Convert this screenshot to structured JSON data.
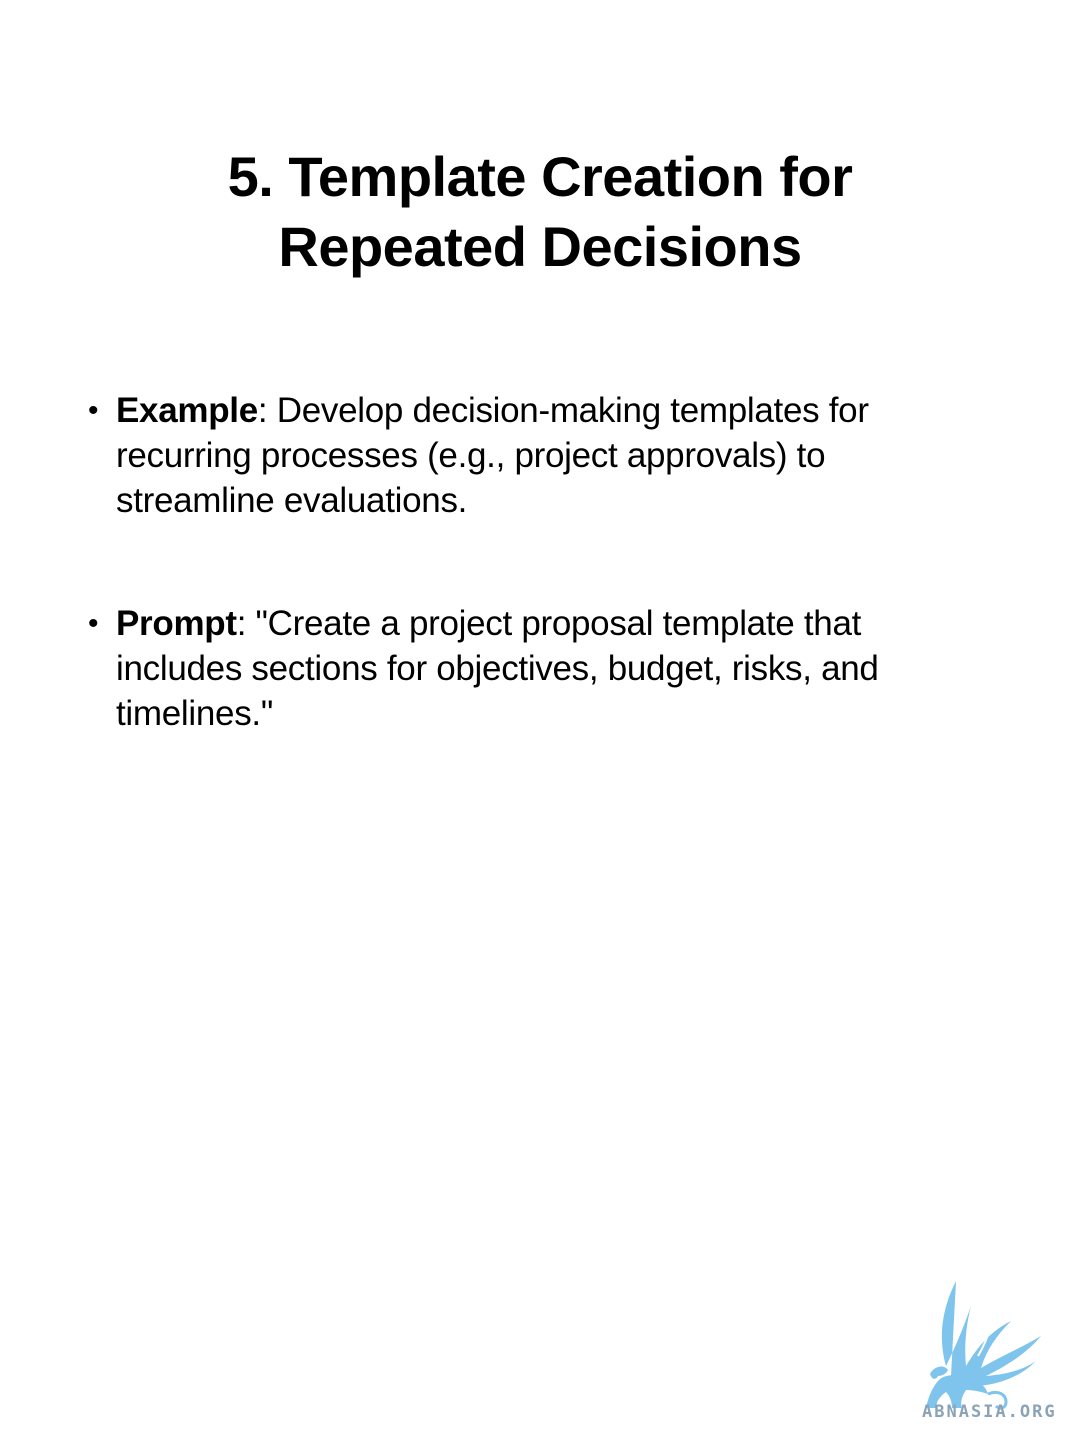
{
  "slide": {
    "title_line1": "5. Template Creation for",
    "title_line2": "Repeated Decisions",
    "bullets": [
      {
        "term": "Example",
        "text": ": Develop decision-making templates for recurring processes (e.g., project approvals) to streamline evaluations."
      },
      {
        "term": "Prompt",
        "text": ": \"Create a project proposal template that includes sections for objectives, budget, risks, and timelines.\""
      }
    ]
  },
  "logo": {
    "text": "ABNASIA.ORG",
    "icon": "griffin-logo-icon",
    "color": "#7fc4ec"
  }
}
